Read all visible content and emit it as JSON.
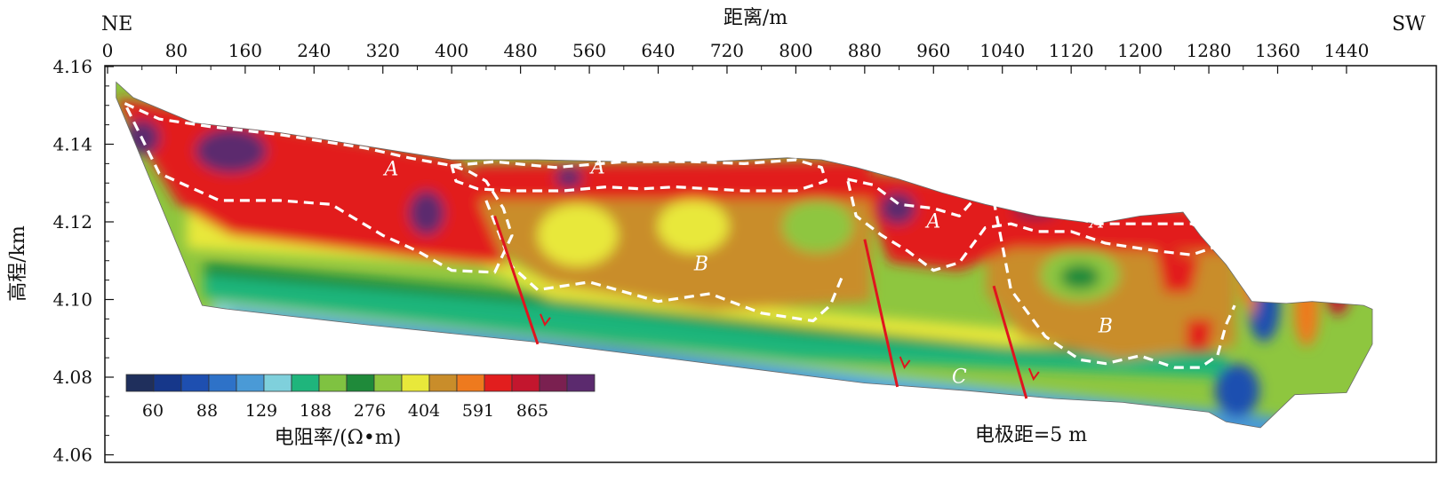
{
  "chart_data": {
    "type": "heatmap",
    "title": "",
    "xlabel": "距离/m",
    "ylabel": "高程/km",
    "x_ticks": [
      0,
      80,
      160,
      240,
      320,
      400,
      480,
      560,
      640,
      720,
      800,
      880,
      960,
      1040,
      1120,
      1200,
      1280,
      1360,
      1440
    ],
    "y_ticks": [
      "4.16",
      "4.14",
      "4.12",
      "4.10",
      "4.08",
      "4.06"
    ],
    "xlim": [
      0,
      1470
    ],
    "ylim": [
      4.06,
      4.16
    ],
    "direction_left": "NE",
    "direction_right": "SW",
    "colorbar": {
      "label": "电阻率/(Ω•m)",
      "tick_labels": [
        "60",
        "88",
        "129",
        "188",
        "276",
        "404",
        "591",
        "865"
      ],
      "colors": [
        "#1f2f5c",
        "#16378a",
        "#1e4fb0",
        "#2e72c8",
        "#4a9ad6",
        "#7fd0dc",
        "#1fb57c",
        "#7fc241",
        "#1f8a3a",
        "#8ec63f",
        "#e8e83a",
        "#c98d2a",
        "#ee7a1e",
        "#e21e1e",
        "#c3162e",
        "#7a2050",
        "#5b2a6e"
      ]
    },
    "zones": [
      {
        "label": "A",
        "x": 330,
        "y": 4.132
      },
      {
        "label": "A",
        "x": 570,
        "y": 4.1325
      },
      {
        "label": "A",
        "x": 960,
        "y": 4.1185
      },
      {
        "label": "A",
        "x": 1150,
        "y": 4.1185
      },
      {
        "label": "B",
        "x": 690,
        "y": 4.1075
      },
      {
        "label": "B",
        "x": 1160,
        "y": 4.0915
      },
      {
        "label": "C",
        "x": 990,
        "y": 4.0785
      }
    ],
    "faults": [
      {
        "x": [
          450,
          500
        ],
        "y": [
          4.1215,
          4.0885
        ]
      },
      {
        "x": [
          880,
          918
        ],
        "y": [
          4.1155,
          4.0775
        ]
      },
      {
        "x": [
          1030,
          1068
        ],
        "y": [
          4.1035,
          4.0745
        ]
      }
    ],
    "surface": {
      "x": [
        10,
        30,
        100,
        200,
        300,
        400,
        500,
        600,
        700,
        790,
        830,
        870,
        920,
        970,
        1020,
        1080,
        1150,
        1200,
        1250,
        1270,
        1290,
        1300,
        1330,
        1370,
        1400,
        1460,
        1470
      ],
      "y": [
        4.156,
        4.152,
        4.1455,
        4.143,
        4.1395,
        4.136,
        4.136,
        4.1355,
        4.1355,
        4.1365,
        4.136,
        4.134,
        4.131,
        4.1275,
        4.1245,
        4.1215,
        4.1195,
        4.1215,
        4.1225,
        4.1165,
        4.1115,
        4.109,
        4.0995,
        4.099,
        4.0995,
        4.0985,
        4.0975
      ]
    },
    "bottom": {
      "x": [
        1470,
        1440,
        1380,
        1340,
        1300,
        1280,
        1240,
        1180,
        1100,
        1000,
        880,
        700,
        500,
        300,
        140,
        110,
        10
      ],
      "y": [
        4.0885,
        4.076,
        4.0755,
        4.067,
        4.0685,
        4.071,
        4.072,
        4.0735,
        4.0745,
        4.0765,
        4.0785,
        4.0835,
        4.089,
        4.0935,
        4.0975,
        4.0985,
        4.152
      ]
    },
    "boundaries": [
      {
        "x": [
          20,
          60,
          120,
          200,
          300,
          350,
          400,
          420,
          440,
          460,
          470,
          450,
          400,
          360,
          320,
          260,
          200,
          130,
          60,
          20
        ],
        "y": [
          4.1505,
          4.1465,
          4.1445,
          4.1425,
          4.139,
          4.1365,
          4.1345,
          4.133,
          4.1305,
          4.1235,
          4.1165,
          4.107,
          4.1075,
          4.1125,
          4.1165,
          4.1245,
          4.1255,
          4.1255,
          4.1325,
          4.1505
        ]
      },
      {
        "x": [
          400,
          450,
          520,
          600,
          680,
          740,
          800,
          830,
          835,
          800,
          740,
          700,
          660,
          620,
          580,
          530,
          470,
          430,
          405,
          400
        ],
        "y": [
          4.1345,
          4.1355,
          4.134,
          4.1355,
          4.1355,
          4.135,
          4.136,
          4.134,
          4.1305,
          4.128,
          4.128,
          4.1285,
          4.129,
          4.1285,
          4.129,
          4.128,
          4.128,
          4.1285,
          4.1305,
          4.1345
        ]
      },
      {
        "x": [
          440,
          470,
          500,
          560,
          640,
          700,
          760,
          820,
          840,
          855
        ],
        "y": [
          4.1255,
          4.1085,
          4.1025,
          4.1045,
          4.0995,
          4.1015,
          4.0965,
          4.0945,
          4.0985,
          4.1065
        ]
      },
      {
        "x": [
          860,
          890,
          920,
          960,
          990,
          1010,
          1030,
          1060,
          1100,
          1150,
          1200,
          1260,
          1290,
          1300,
          1260,
          1220,
          1160,
          1120,
          1080,
          1050,
          1020,
          990,
          960,
          930,
          900,
          870,
          860
        ],
        "y": [
          4.131,
          4.1295,
          4.1245,
          4.1235,
          4.1215,
          4.1265,
          4.1285,
          4.1245,
          4.1225,
          4.1195,
          4.1195,
          4.1195,
          4.1165,
          4.1145,
          4.1115,
          4.1125,
          4.1145,
          4.1175,
          4.1175,
          4.1195,
          4.1185,
          4.1095,
          4.1075,
          4.1125,
          4.1165,
          4.1215,
          4.131
        ]
      },
      {
        "x": [
          1030,
          1050,
          1090,
          1130,
          1160,
          1200,
          1240,
          1270,
          1290,
          1300,
          1310
        ],
        "y": [
          4.1255,
          4.1025,
          4.0905,
          4.0845,
          4.0835,
          4.0855,
          4.0825,
          4.0825,
          4.0855,
          4.0935,
          4.0985
        ]
      }
    ],
    "annotation": "电极距=5 m",
    "grid": false,
    "legend": "bottom-left"
  }
}
